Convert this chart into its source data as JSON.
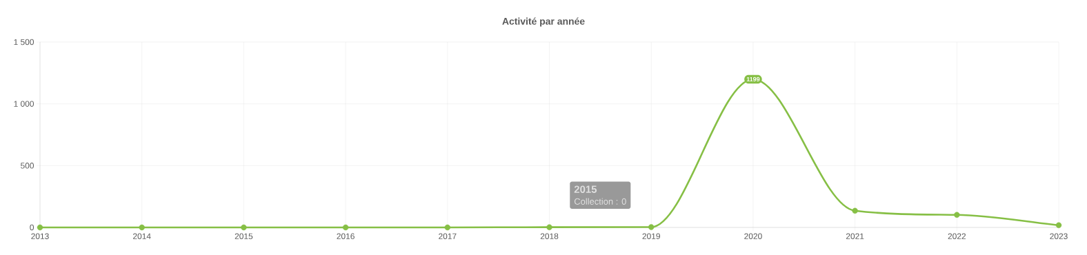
{
  "chart_data": {
    "type": "line",
    "title": "Activité par année",
    "x": [
      2013,
      2014,
      2015,
      2016,
      2017,
      2018,
      2019,
      2020,
      2021,
      2022,
      2023
    ],
    "series": [
      {
        "color": "#86bf45",
        "values": [
          0,
          0,
          0,
          0,
          0,
          2,
          3,
          1199,
          135,
          102,
          18
        ],
        "value_labels": [
          null,
          null,
          null,
          null,
          null,
          null,
          null,
          "1199",
          null,
          null,
          null
        ]
      }
    ],
    "xlim": [
      2013,
      2023
    ],
    "xticks": [
      2013,
      2014,
      2015,
      2016,
      2017,
      2018,
      2019,
      2020,
      2021,
      2022,
      2023
    ],
    "ylim": [
      0,
      1500
    ],
    "yticks": [
      0,
      500,
      {
        "value": 1000,
        "label": "1 000"
      },
      {
        "value": 1500,
        "label": "1 500"
      }
    ],
    "grid": true,
    "marker": "circle",
    "line_style": "solid",
    "annotations": [
      "2015",
      "Collection : 0"
    ]
  }
}
